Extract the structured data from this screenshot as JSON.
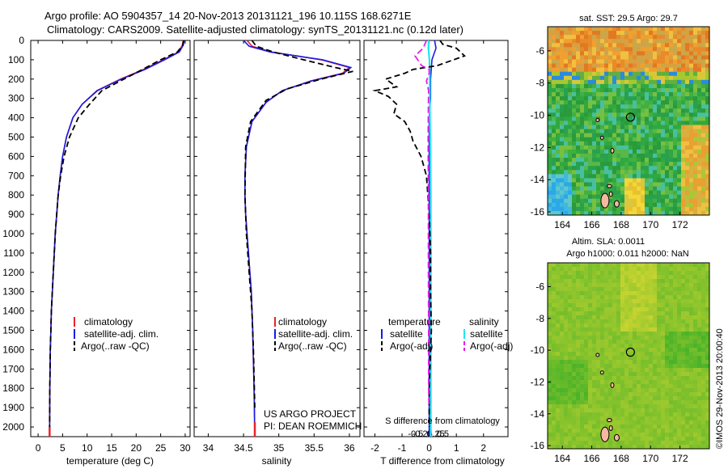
{
  "header": {
    "title_line1": "Argo profile: AO 5904357_14 20-Nov-2013 20131121_196 10.115S 168.6271E",
    "title_line2": "Climatology: CARS2009. Satellite-adjusted climatology: synTS_20131121.nc (0.12d later)"
  },
  "depth_ticks": [
    0,
    100,
    200,
    300,
    400,
    500,
    600,
    700,
    800,
    900,
    1000,
    1100,
    1200,
    1300,
    1400,
    1500,
    1600,
    1700,
    1800,
    1900,
    2000
  ],
  "colors": {
    "climatology": "#e8232a",
    "satellite_adj": "#1a1ae6",
    "argo": "#000000",
    "satellite_salinity": "#22e6f0",
    "argo_salinity": "#e61ee6"
  },
  "chart_data": [
    {
      "type": "line",
      "name": "temperature profile",
      "xlabel": "temperature (deg C)",
      "ylabel": "",
      "xlim": [
        -1.5,
        31
      ],
      "ylim": [
        2050,
        0
      ],
      "xticks": [
        0,
        5,
        10,
        15,
        20,
        25,
        30
      ],
      "legend": [
        "climatology",
        "satellite-adj. clim.",
        "Argo(..raw -QC)"
      ],
      "legend_position": "bottom-center",
      "series": [
        {
          "name": "climatology",
          "x": [
            29.6,
            29.4,
            28.6,
            25.5,
            21.5,
            16.8,
            12.0,
            9.0,
            7.1,
            5.8,
            5.0,
            4.5,
            4.1,
            3.8,
            3.5,
            3.3,
            3.1,
            2.9,
            2.7,
            2.6,
            2.5,
            2.4,
            2.35
          ],
          "y": [
            0,
            25,
            60,
            100,
            150,
            200,
            260,
            330,
            400,
            500,
            600,
            700,
            800,
            900,
            1000,
            1100,
            1200,
            1300,
            1400,
            1500,
            1600,
            1800,
            2050
          ]
        },
        {
          "name": "satellite-adj. clim.",
          "x": [
            29.8,
            29.6,
            28.8,
            25.8,
            21.8,
            17.0,
            12.1,
            9.0,
            7.1,
            5.8,
            5.0,
            4.5,
            4.1,
            3.8,
            3.5,
            3.3,
            3.1,
            2.9,
            2.7,
            2.6,
            2.5,
            2.4,
            2.35
          ],
          "y": [
            0,
            25,
            60,
            100,
            150,
            200,
            260,
            330,
            400,
            500,
            600,
            700,
            800,
            900,
            1000,
            1100,
            1200,
            1300,
            1400,
            1500,
            1600,
            1800,
            2050
          ]
        },
        {
          "name": "Argo(..raw -QC)",
          "x": [
            29.7,
            29.5,
            28.4,
            25.0,
            21.3,
            17.5,
            13.0,
            10.5,
            8.2,
            6.4,
            5.3,
            4.6,
            4.1,
            3.8,
            3.5,
            3.3,
            3.1,
            2.9,
            2.7,
            2.6,
            2.5,
            2.4,
            2.35
          ],
          "y": [
            0,
            25,
            60,
            100,
            150,
            200,
            260,
            330,
            400,
            500,
            600,
            700,
            800,
            900,
            1000,
            1100,
            1200,
            1300,
            1400,
            1500,
            1600,
            1800,
            2000
          ]
        }
      ]
    },
    {
      "type": "line",
      "name": "salinity profile",
      "xlabel": "salinity",
      "ylabel": "",
      "xlim": [
        33.8,
        36.15
      ],
      "ylim": [
        2050,
        0
      ],
      "xticks": [
        34,
        34.5,
        35,
        35.5,
        36
      ],
      "legend": [
        "climatology",
        "satellite-adj. clim.",
        "Argo(..raw -QC)"
      ],
      "legend_position": "bottom-center",
      "annotation": [
        "US ARGO PROJECT",
        "PI: DEAN ROEMMICH"
      ],
      "series": [
        {
          "name": "climatology",
          "x": [
            34.55,
            34.62,
            34.9,
            35.6,
            36.0,
            35.9,
            35.45,
            35.05,
            34.82,
            34.62,
            34.54,
            34.52,
            34.52,
            34.53,
            34.55,
            34.57,
            34.59,
            34.61,
            34.62,
            34.63,
            34.65,
            34.66
          ],
          "y": [
            0,
            30,
            60,
            100,
            140,
            170,
            210,
            260,
            320,
            420,
            550,
            700,
            800,
            900,
            1000,
            1100,
            1200,
            1300,
            1400,
            1500,
            1800,
            2050
          ]
        },
        {
          "name": "satellite-adj. clim.",
          "x": [
            34.5,
            34.58,
            34.88,
            35.62,
            36.02,
            35.92,
            35.46,
            35.05,
            34.82,
            34.62,
            34.54,
            34.52,
            34.52,
            34.53,
            34.55,
            34.57,
            34.59,
            34.61,
            34.62,
            34.63,
            34.65,
            34.66
          ],
          "y": [
            0,
            30,
            60,
            100,
            140,
            170,
            210,
            260,
            320,
            420,
            550,
            700,
            800,
            900,
            1000,
            1100,
            1200,
            1300,
            1400,
            1500,
            1800,
            2050
          ]
        },
        {
          "name": "Argo(..raw -QC)",
          "x": [
            34.62,
            34.68,
            34.92,
            35.35,
            35.8,
            36.05,
            35.6,
            35.12,
            34.82,
            34.6,
            34.53,
            34.52,
            34.53,
            34.54,
            34.56,
            34.58,
            34.6,
            34.62,
            34.63,
            34.64,
            34.66
          ],
          "y": [
            0,
            30,
            60,
            100,
            140,
            160,
            200,
            250,
            310,
            420,
            550,
            800,
            900,
            1000,
            1100,
            1200,
            1300,
            1400,
            1500,
            1600,
            1900
          ]
        }
      ]
    },
    {
      "type": "line",
      "name": "difference from climatology",
      "xlabel": "T difference from climatology",
      "xlabel_top": "S difference from climatology",
      "xlim": [
        -2.4,
        2.9
      ],
      "ylim": [
        2050,
        0
      ],
      "xticks": [
        -2,
        -1,
        0,
        1,
        2
      ],
      "xticks_top": [
        -0.5,
        -0.25,
        0,
        0.25,
        0.5
      ],
      "xticklabels_top": [
        "-0.5",
        "-0.25",
        "0",
        "0.25",
        "0.5"
      ],
      "legend_groups": [
        "temperature",
        "salinity"
      ],
      "legend": [
        "satellite",
        "Argo(-adj)",
        "satellite",
        "Argo(-adj)"
      ],
      "legend_position": "bottom-center",
      "series": [
        {
          "name": "temperature satellite",
          "x": [
            0.2,
            0.25,
            0.1,
            0.05,
            0.05,
            0.0,
            0.0,
            0.0,
            0.0,
            0.0,
            0.0,
            0.0,
            0.0,
            0.0
          ],
          "y": [
            0,
            40,
            100,
            200,
            300,
            400,
            600,
            800,
            1000,
            1200,
            1400,
            1600,
            1800,
            2050
          ]
        },
        {
          "name": "temperature Argo(-adj)",
          "x": [
            0.4,
            0.5,
            1.0,
            1.3,
            0.3,
            -0.6,
            -0.9,
            -1.6,
            -1.2,
            -2.0,
            -1.5,
            -1.2,
            -1.3,
            -0.9,
            -0.7,
            -0.6,
            -0.3,
            -0.1,
            0.0,
            0.05,
            0.05,
            0.08,
            0.0,
            0.0
          ],
          "y": [
            0,
            20,
            40,
            80,
            130,
            150,
            170,
            200,
            240,
            260,
            290,
            330,
            380,
            420,
            470,
            520,
            600,
            700,
            900,
            1100,
            1300,
            1500,
            1800,
            2000
          ]
        },
        {
          "name": "salinity satellite",
          "x": [
            -0.02,
            -0.03,
            0.01,
            0.02,
            0.02,
            0.03,
            0.05,
            0.06,
            0.06,
            0.06,
            0.06,
            0.06,
            0.06
          ],
          "y": [
            0,
            40,
            100,
            200,
            300,
            400,
            600,
            800,
            1000,
            1200,
            1500,
            1800,
            2050
          ]
        },
        {
          "name": "salinity Argo(-adj)",
          "x": [
            -0.1,
            -0.22,
            -0.52,
            -0.28,
            0.0,
            0.0,
            -0.1,
            -0.02,
            -0.03,
            -0.04,
            -0.03,
            -0.03,
            -0.03,
            -0.02,
            -0.02,
            -0.01
          ],
          "y": [
            0,
            40,
            80,
            130,
            150,
            170,
            210,
            260,
            330,
            500,
            800,
            1000,
            1200,
            1500,
            1800,
            1900
          ]
        }
      ]
    },
    {
      "type": "heatmap",
      "name": "SST map",
      "title": "sat. SST: 29.5 Argo: 29.7",
      "xlim": [
        163,
        174
      ],
      "ylim": [
        -16.2,
        -4.5
      ],
      "xticks": [
        164,
        166,
        168,
        170,
        172
      ],
      "yticks": [
        -6,
        -8,
        -10,
        -12,
        -14,
        -16
      ],
      "marker": {
        "x": 168.63,
        "y": -10.12
      }
    },
    {
      "type": "heatmap",
      "name": "SLA map",
      "title": "Altim. SLA: 0.0011",
      "subtitle": "Argo h1000: 0.011 h2000: NaN",
      "xlim": [
        163,
        174
      ],
      "ylim": [
        -16.2,
        -4.5
      ],
      "xticks": [
        164,
        166,
        168,
        170,
        172
      ],
      "yticks": [
        -6,
        -8,
        -10,
        -12,
        -14,
        -16
      ],
      "marker": {
        "x": 168.63,
        "y": -10.12
      }
    }
  ],
  "footer": {
    "stamp": "©IMOS 29-Nov-2013 20:00:40"
  }
}
